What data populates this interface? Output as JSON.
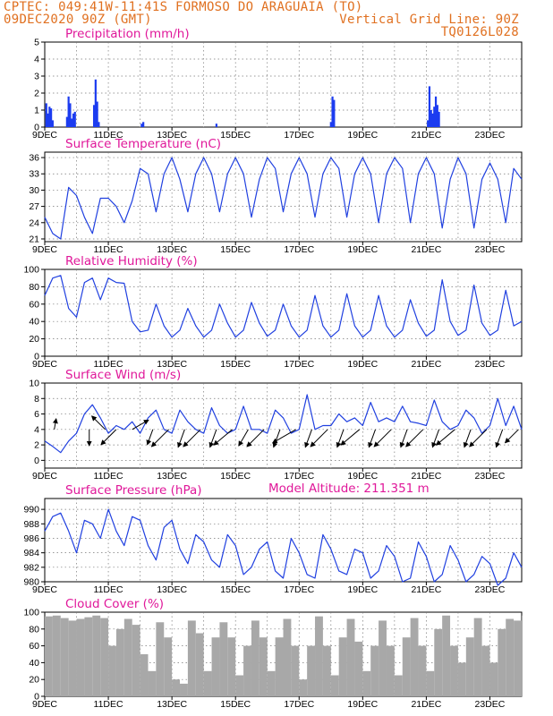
{
  "header": {
    "line1_left": "CPTEC:  049:41W-11:41S  FORMOSO DO ARAGUAIA (TO)",
    "line2_left": "09DEC2020 90Z (GMT)",
    "line2_right": "Vertical Grid Line: 90Z",
    "line3_right": "TQ0126L028"
  },
  "colors": {
    "header": "#e07020",
    "title": "#e0189a",
    "line": "#2040e0",
    "bar": "#1c3cf0",
    "cloud": "#a8a8a8",
    "arrow": "#000000"
  },
  "x_axis": {
    "start_day": 9,
    "end_day": 24,
    "tick_labels": [
      "9DEC",
      "11DEC",
      "13DEC",
      "15DEC",
      "17DEC",
      "19DEC",
      "21DEC",
      "23DEC"
    ],
    "tick_days": [
      9,
      11,
      13,
      15,
      17,
      19,
      21,
      23
    ]
  },
  "chart_data": [
    {
      "id": "precip",
      "type": "bar",
      "title": "Precipitation (mm/h)",
      "ylim": [
        0,
        5
      ],
      "yticks": [
        "0",
        "1",
        "2",
        "3",
        "4",
        "5"
      ],
      "x": [
        9.05,
        9.1,
        9.15,
        9.2,
        9.25,
        9.7,
        9.75,
        9.8,
        9.85,
        9.9,
        9.95,
        10.55,
        10.6,
        10.65,
        10.7,
        12.05,
        12.1,
        14.4,
        18.0,
        18.05,
        18.1,
        21.05,
        21.1,
        21.15,
        21.2,
        21.25,
        21.3,
        21.35,
        21.4
      ],
      "values": [
        1.4,
        0.8,
        1.2,
        1.1,
        0.4,
        0.6,
        1.8,
        1.4,
        0.5,
        0.8,
        0.9,
        1.3,
        2.8,
        1.5,
        0.3,
        0.2,
        0.3,
        0.2,
        0.3,
        1.8,
        1.6,
        0.4,
        2.4,
        1.0,
        0.8,
        1.2,
        1.8,
        1.3,
        0.9
      ]
    },
    {
      "id": "temp",
      "type": "line",
      "title": "Surface Temperature (nC)",
      "ylim": [
        20.5,
        37
      ],
      "yticks": [
        "21",
        "24",
        "27",
        "30",
        "33",
        "36"
      ],
      "x": [
        9.0,
        9.25,
        9.5,
        9.75,
        10.0,
        10.25,
        10.5,
        10.75,
        11.0,
        11.25,
        11.5,
        11.75,
        12.0,
        12.25,
        12.5,
        12.75,
        13.0,
        13.25,
        13.5,
        13.75,
        14.0,
        14.25,
        14.5,
        14.75,
        15.0,
        15.25,
        15.5,
        15.75,
        16.0,
        16.25,
        16.5,
        16.75,
        17.0,
        17.25,
        17.5,
        17.75,
        18.0,
        18.25,
        18.5,
        18.75,
        19.0,
        19.25,
        19.5,
        19.75,
        20.0,
        20.25,
        20.5,
        20.75,
        21.0,
        21.25,
        21.5,
        21.75,
        22.0,
        22.25,
        22.5,
        22.75,
        23.0,
        23.25,
        23.5,
        23.75,
        24.0
      ],
      "values": [
        25.0,
        22.0,
        21.0,
        30.5,
        29.0,
        25.0,
        22.0,
        28.5,
        28.5,
        27.0,
        24.0,
        28.0,
        34.0,
        33.0,
        26.0,
        33.0,
        36.0,
        32.0,
        26.0,
        33.0,
        36.0,
        33.0,
        26.0,
        33.0,
        36.0,
        33.0,
        25.0,
        32.0,
        36.0,
        34.0,
        26.0,
        33.0,
        36.0,
        33.0,
        25.0,
        33.0,
        36.0,
        34.0,
        25.0,
        33.0,
        36.0,
        33.0,
        24.0,
        33.0,
        36.0,
        34.0,
        24.0,
        33.0,
        36.0,
        33.0,
        23.0,
        32.0,
        36.0,
        33.0,
        23.0,
        32.0,
        35.0,
        32.0,
        24.0,
        34.0,
        32.0
      ]
    },
    {
      "id": "rh",
      "type": "line",
      "title": "Relative Humidity (%)",
      "ylim": [
        0,
        100
      ],
      "yticks": [
        "0",
        "20",
        "40",
        "60",
        "80",
        "100"
      ],
      "x": [
        9.0,
        9.25,
        9.5,
        9.75,
        10.0,
        10.25,
        10.5,
        10.75,
        11.0,
        11.25,
        11.5,
        11.75,
        12.0,
        12.25,
        12.5,
        12.75,
        13.0,
        13.25,
        13.5,
        13.75,
        14.0,
        14.25,
        14.5,
        14.75,
        15.0,
        15.25,
        15.5,
        15.75,
        16.0,
        16.25,
        16.5,
        16.75,
        17.0,
        17.25,
        17.5,
        17.75,
        18.0,
        18.25,
        18.5,
        18.75,
        19.0,
        19.25,
        19.5,
        19.75,
        20.0,
        20.25,
        20.5,
        20.75,
        21.0,
        21.25,
        21.5,
        21.75,
        22.0,
        22.25,
        22.5,
        22.75,
        23.0,
        23.25,
        23.5,
        23.75,
        24.0
      ],
      "values": [
        70.0,
        90.0,
        93.0,
        55.0,
        45.0,
        85.0,
        90.0,
        65.0,
        90.0,
        85.0,
        84.0,
        40.0,
        28.0,
        30.0,
        60.0,
        35.0,
        22.0,
        30.0,
        55.0,
        35.0,
        22.0,
        30.0,
        60.0,
        38.0,
        22.0,
        30.0,
        62.0,
        38.0,
        23.0,
        30.0,
        60.0,
        35.0,
        22.0,
        30.0,
        70.0,
        35.0,
        22.0,
        30.0,
        72.0,
        35.0,
        22.0,
        30.0,
        70.0,
        35.0,
        22.0,
        30.0,
        65.0,
        38.0,
        23.0,
        30.0,
        88.0,
        40.0,
        24.0,
        30.0,
        82.0,
        38.0,
        24.0,
        30.0,
        76.0,
        35.0,
        40.0
      ]
    },
    {
      "id": "wind",
      "type": "line",
      "title": "Surface Wind (m/s)",
      "ylim": [
        -1,
        10
      ],
      "yticks": [
        "0",
        "2",
        "4",
        "6",
        "8",
        "10"
      ],
      "x": [
        9.0,
        9.25,
        9.5,
        9.75,
        10.0,
        10.25,
        10.5,
        10.75,
        11.0,
        11.25,
        11.5,
        11.75,
        12.0,
        12.25,
        12.5,
        12.75,
        13.0,
        13.25,
        13.5,
        13.75,
        14.0,
        14.25,
        14.5,
        14.75,
        15.0,
        15.25,
        15.5,
        15.75,
        16.0,
        16.25,
        16.5,
        16.75,
        17.0,
        17.25,
        17.5,
        17.75,
        18.0,
        18.25,
        18.5,
        18.75,
        19.0,
        19.25,
        19.5,
        19.75,
        20.0,
        20.25,
        20.5,
        20.75,
        21.0,
        21.25,
        21.5,
        21.75,
        22.0,
        22.25,
        22.5,
        22.75,
        23.0,
        23.25,
        23.5,
        23.75,
        24.0
      ],
      "values": [
        2.5,
        1.8,
        1.0,
        2.5,
        3.5,
        6.0,
        7.2,
        5.5,
        3.5,
        4.5,
        4.0,
        5.0,
        3.5,
        5.5,
        6.5,
        4.0,
        3.5,
        6.5,
        5.0,
        4.0,
        3.5,
        6.8,
        4.5,
        3.5,
        4.0,
        7.0,
        4.0,
        4.0,
        3.5,
        6.5,
        5.5,
        3.5,
        4.0,
        8.5,
        4.0,
        4.5,
        4.5,
        6.0,
        5.0,
        5.5,
        4.5,
        7.5,
        5.0,
        5.5,
        5.0,
        7.0,
        5.0,
        4.8,
        4.5,
        7.8,
        5.0,
        4.0,
        4.5,
        6.5,
        5.5,
        3.5,
        4.5,
        8.0,
        4.5,
        7.0,
        4.0
      ],
      "barbs_x": [
        9.3,
        10.4,
        10.9,
        11.25,
        11.75,
        12.4,
        12.9,
        13.4,
        13.9,
        14.4,
        14.9,
        15.4,
        15.9,
        16.4,
        16.9,
        17.4,
        17.9,
        18.4,
        18.9,
        19.4,
        19.9,
        20.4,
        20.9,
        21.4,
        21.9,
        22.4,
        22.9,
        23.4,
        23.9
      ],
      "barbs_dir": [
        10,
        180,
        315,
        225,
        60,
        200,
        225,
        200,
        225,
        200,
        230,
        210,
        225,
        200,
        240,
        200,
        225,
        200,
        230,
        200,
        225,
        200,
        225,
        200,
        230,
        200,
        225,
        200,
        225
      ],
      "barbs_speed": [
        2.0,
        3.0,
        3.5,
        4.0,
        3.5,
        3.0,
        4.5,
        3.5,
        4.5,
        3.5,
        4.5,
        3.5,
        4.5,
        3.5,
        5.0,
        3.5,
        4.5,
        3.5,
        4.5,
        3.5,
        4.5,
        3.5,
        4.5,
        3.5,
        4.5,
        3.5,
        4.5,
        3.5,
        3.5
      ]
    },
    {
      "id": "pressure",
      "type": "line",
      "title": "Surface Pressure (hPa)",
      "ylim": [
        980,
        991.5
      ],
      "yticks": [
        "980",
        "982",
        "984",
        "986",
        "988",
        "990"
      ],
      "x": [
        9.0,
        9.25,
        9.5,
        9.75,
        10.0,
        10.25,
        10.5,
        10.75,
        11.0,
        11.25,
        11.5,
        11.75,
        12.0,
        12.25,
        12.5,
        12.75,
        13.0,
        13.25,
        13.5,
        13.75,
        14.0,
        14.25,
        14.5,
        14.75,
        15.0,
        15.25,
        15.5,
        15.75,
        16.0,
        16.25,
        16.5,
        16.75,
        17.0,
        17.25,
        17.5,
        17.75,
        18.0,
        18.25,
        18.5,
        18.75,
        19.0,
        19.25,
        19.5,
        19.75,
        20.0,
        20.25,
        20.5,
        20.75,
        21.0,
        21.25,
        21.5,
        21.75,
        22.0,
        22.25,
        22.5,
        22.75,
        23.0,
        23.25,
        23.5,
        23.75,
        24.0
      ],
      "values": [
        987.0,
        989.0,
        989.5,
        987.0,
        984.0,
        988.5,
        988.0,
        986.0,
        990.0,
        987.0,
        985.0,
        989.0,
        988.5,
        985.0,
        983.0,
        987.5,
        988.5,
        984.5,
        982.5,
        986.5,
        985.5,
        983.0,
        982.0,
        986.5,
        985.0,
        981.0,
        982.0,
        984.5,
        985.5,
        981.5,
        980.5,
        986.0,
        984.0,
        981.0,
        980.5,
        986.5,
        984.5,
        981.5,
        981.0,
        984.5,
        984.0,
        980.5,
        981.5,
        985.0,
        983.5,
        980.0,
        980.5,
        985.5,
        983.5,
        980.0,
        981.0,
        985.0,
        983.0,
        980.0,
        981.0,
        983.5,
        982.5,
        979.5,
        980.5,
        984.0,
        982.0
      ]
    },
    {
      "id": "cloud",
      "type": "area",
      "title": "Cloud Cover (%)",
      "ylim": [
        0,
        100
      ],
      "yticks": [
        "0",
        "20",
        "40",
        "60",
        "80",
        "100"
      ],
      "x": [
        9.0,
        9.25,
        9.5,
        9.75,
        10.0,
        10.25,
        10.5,
        10.75,
        11.0,
        11.25,
        11.5,
        11.75,
        12.0,
        12.25,
        12.5,
        12.75,
        13.0,
        13.25,
        13.5,
        13.75,
        14.0,
        14.25,
        14.5,
        14.75,
        15.0,
        15.25,
        15.5,
        15.75,
        16.0,
        16.25,
        16.5,
        16.75,
        17.0,
        17.25,
        17.5,
        17.75,
        18.0,
        18.25,
        18.5,
        18.75,
        19.0,
        19.25,
        19.5,
        19.75,
        20.0,
        20.25,
        20.5,
        20.75,
        21.0,
        21.25,
        21.5,
        21.75,
        22.0,
        22.25,
        22.5,
        22.75,
        23.0,
        23.25,
        23.5,
        23.75,
        24.0
      ],
      "values": [
        95.0,
        96.0,
        93.0,
        90.0,
        92.0,
        94.0,
        96.0,
        93.0,
        60.0,
        80.0,
        92.0,
        85.0,
        50.0,
        30.0,
        88.0,
        70.0,
        20.0,
        15.0,
        90.0,
        75.0,
        30.0,
        70.0,
        88.0,
        70.0,
        25.0,
        60.0,
        90.0,
        70.0,
        30.0,
        70.0,
        92.0,
        60.0,
        20.0,
        60.0,
        95.0,
        60.0,
        25.0,
        70.0,
        92.0,
        65.0,
        30.0,
        60.0,
        90.0,
        60.0,
        25.0,
        70.0,
        93.0,
        60.0,
        30.0,
        80.0,
        96.0,
        60.0,
        40.0,
        70.0,
        93.0,
        60.0,
        40.0,
        80.0,
        92.0,
        90.0,
        96.0
      ]
    }
  ],
  "labels": {
    "model_altitude": "Model Altitude: 211.351 m"
  }
}
